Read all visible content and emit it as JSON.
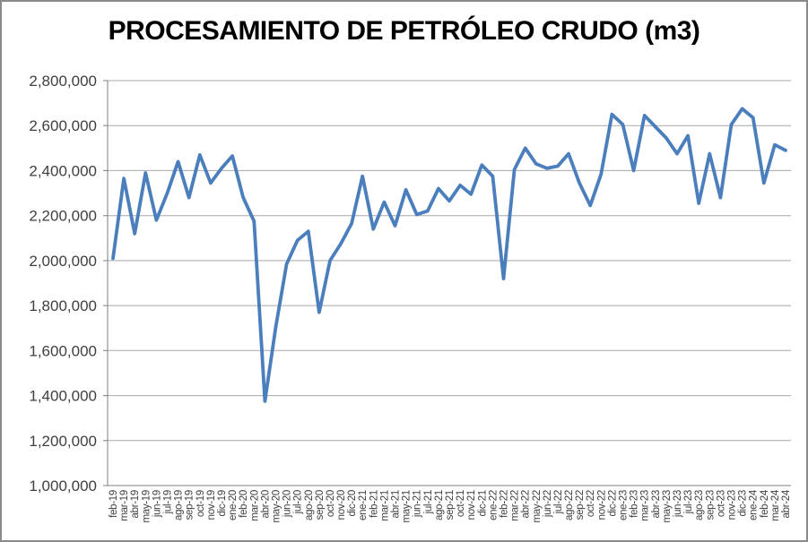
{
  "title": "PROCESAMIENTO DE PETRÓLEO CRUDO (m3)",
  "chart_data": {
    "type": "line",
    "title": "PROCESAMIENTO DE PETRÓLEO CRUDO (m3)",
    "xlabel": "",
    "ylabel": "",
    "ylim": [
      1000000,
      2800000
    ],
    "ytick_interval": 200000,
    "ytick_labels": [
      "1,000,000",
      "1,200,000",
      "1,400,000",
      "1,600,000",
      "1,800,000",
      "2,000,000",
      "2,200,000",
      "2,400,000",
      "2,600,000",
      "2,800,000"
    ],
    "grid": true,
    "legend_position": "none",
    "line_color": "#4a7ebc",
    "gridline_color": "#a8a8a8",
    "axis_color": "#7f7f7f",
    "categories": [
      "feb-19",
      "mar-19",
      "abr-19",
      "may-19",
      "jun-19",
      "jul-19",
      "ago-19",
      "sep-19",
      "oct-19",
      "nov-19",
      "dic-19",
      "ene-20",
      "feb-20",
      "mar-20",
      "abr-20",
      "may-20",
      "jun-20",
      "jul-20",
      "ago-20",
      "sep-20",
      "oct-20",
      "nov-20",
      "dic-20",
      "ene-21",
      "feb-21",
      "mar-21",
      "abr-21",
      "may-21",
      "jun-21",
      "jul-21",
      "ago-21",
      "sep-21",
      "oct-21",
      "nov-21",
      "dic-21",
      "ene-22",
      "feb-22",
      "mar-22",
      "abr-22",
      "may-22",
      "jun-22",
      "jul-22",
      "ago-22",
      "sep-22",
      "oct-22",
      "nov-22",
      "dic-22",
      "ene-23",
      "feb-23",
      "mar-23",
      "abr-23",
      "may-23",
      "jun-23",
      "jul-23",
      "ago-23",
      "sep-23",
      "oct-23",
      "nov-23",
      "dic-23",
      "ene-24",
      "feb-24",
      "mar-24",
      "abr-24"
    ],
    "values": [
      2010000,
      2365000,
      2120000,
      2390000,
      2180000,
      2300000,
      2440000,
      2280000,
      2470000,
      2345000,
      2410000,
      2465000,
      2280000,
      2175000,
      1375000,
      1705000,
      1985000,
      2090000,
      2130000,
      1770000,
      2000000,
      2075000,
      2165000,
      2375000,
      2140000,
      2260000,
      2155000,
      2315000,
      2205000,
      2220000,
      2320000,
      2265000,
      2335000,
      2295000,
      2425000,
      2375000,
      1920000,
      2405000,
      2500000,
      2430000,
      2410000,
      2420000,
      2475000,
      2345000,
      2245000,
      2385000,
      2650000,
      2605000,
      2400000,
      2645000,
      2595000,
      2545000,
      2475000,
      2555000,
      2255000,
      2475000,
      2280000,
      2605000,
      2675000,
      2635000,
      2345000,
      2515000,
      2490000
    ]
  }
}
